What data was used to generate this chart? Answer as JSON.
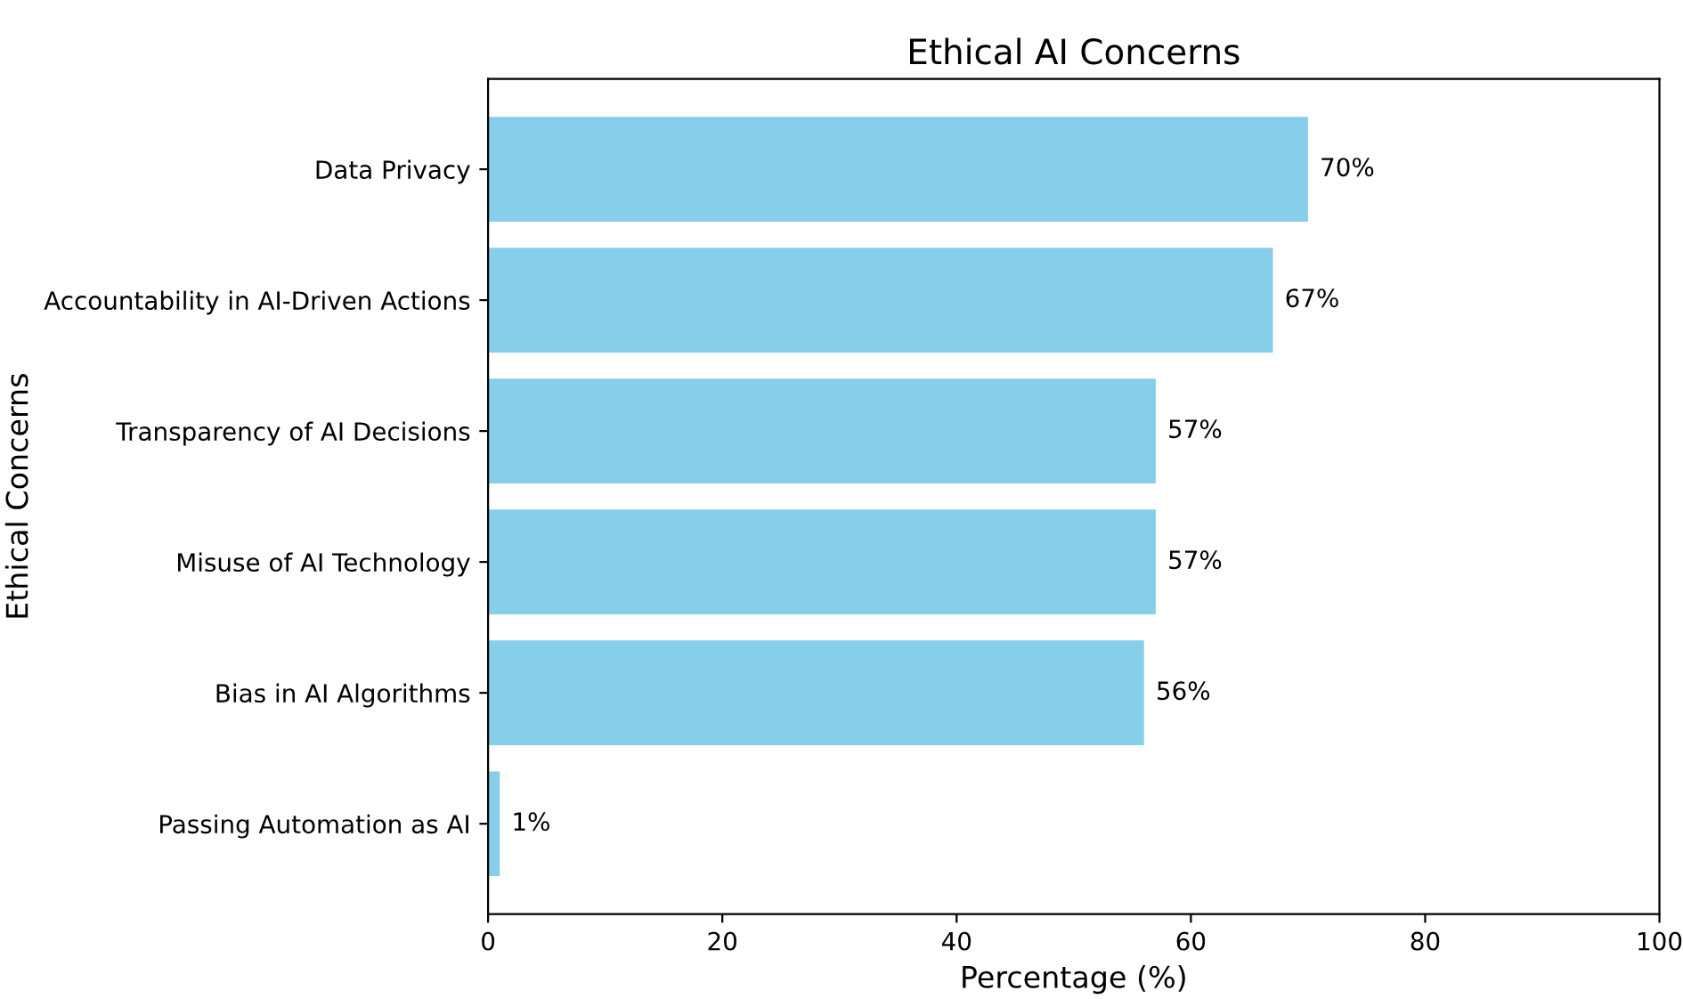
{
  "chart_data": {
    "type": "bar",
    "orientation": "horizontal",
    "title": "Ethical AI Concerns",
    "xlabel": "Percentage (%)",
    "ylabel": "Ethical Concerns",
    "categories": [
      "Data Privacy",
      "Accountability in AI-Driven Actions",
      "Transparency of AI Decisions",
      "Misuse of AI Technology",
      "Bias in AI Algorithms",
      "Passing Automation as AI"
    ],
    "values": [
      70,
      67,
      57,
      57,
      56,
      1
    ],
    "value_labels": [
      "70%",
      "67%",
      "57%",
      "57%",
      "56%",
      "1%"
    ],
    "color": "#87ceeb",
    "xlim": [
      0,
      100
    ],
    "xticks": [
      0,
      20,
      40,
      60,
      80,
      100
    ],
    "grid": false,
    "legend": false
  }
}
